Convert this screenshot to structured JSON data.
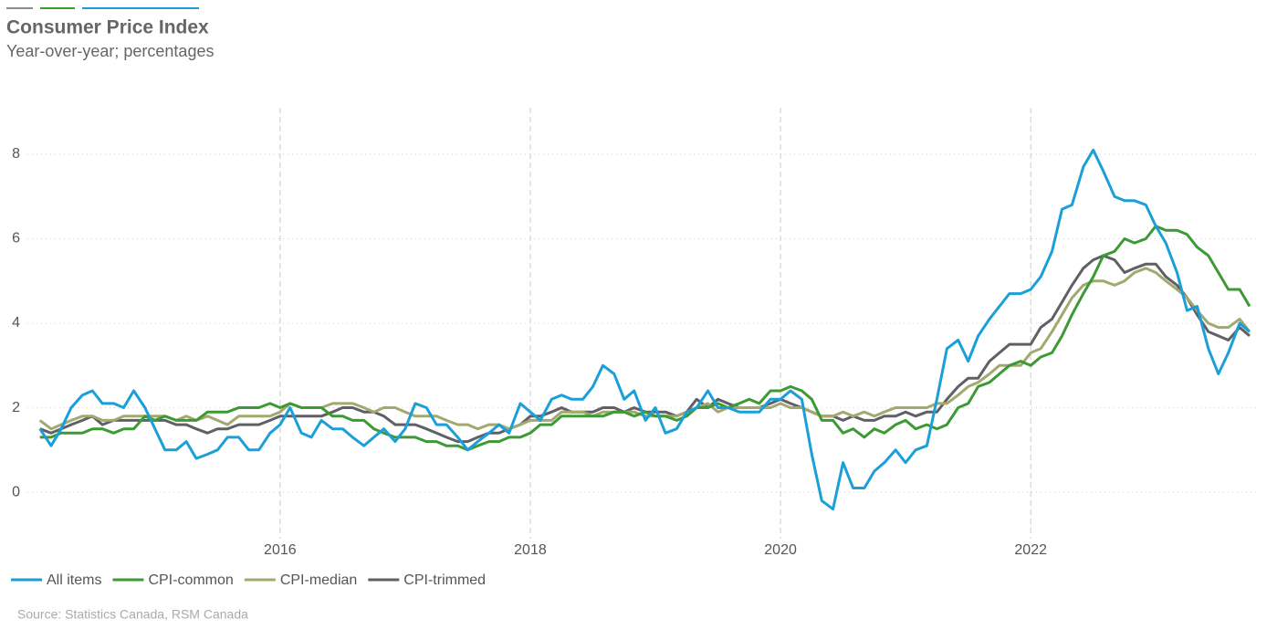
{
  "chart_data": {
    "type": "line",
    "title": "Consumer Price Index",
    "subtitle": "Year-over-year; percentages",
    "source": "Source: Statistics Canada, RSM Canada",
    "x": [
      2014.08,
      2014.17,
      2014.25,
      2014.33,
      2014.42,
      2014.5,
      2014.58,
      2014.67,
      2014.75,
      2014.83,
      2014.92,
      2015,
      2015.08,
      2015.17,
      2015.25,
      2015.33,
      2015.42,
      2015.5,
      2015.58,
      2015.67,
      2015.75,
      2015.83,
      2015.92,
      2016,
      2016.08,
      2016.17,
      2016.25,
      2016.33,
      2016.42,
      2016.5,
      2016.58,
      2016.67,
      2016.75,
      2016.83,
      2016.92,
      2017,
      2017.08,
      2017.17,
      2017.25,
      2017.33,
      2017.42,
      2017.5,
      2017.58,
      2017.67,
      2017.75,
      2017.83,
      2017.92,
      2018,
      2018.08,
      2018.17,
      2018.25,
      2018.33,
      2018.42,
      2018.5,
      2018.58,
      2018.67,
      2018.75,
      2018.83,
      2018.92,
      2019,
      2019.08,
      2019.17,
      2019.25,
      2019.33,
      2019.42,
      2019.5,
      2019.58,
      2019.67,
      2019.75,
      2019.83,
      2019.92,
      2020,
      2020.08,
      2020.17,
      2020.25,
      2020.33,
      2020.42,
      2020.5,
      2020.58,
      2020.67,
      2020.75,
      2020.83,
      2020.92,
      2021,
      2021.08,
      2021.17,
      2021.25,
      2021.33,
      2021.42,
      2021.5,
      2021.58,
      2021.67,
      2021.75,
      2021.83,
      2021.92,
      2022,
      2022.08,
      2022.17,
      2022.25,
      2022.33,
      2022.42,
      2022.5,
      2022.58,
      2022.67,
      2022.75,
      2022.83,
      2022.92,
      2023,
      2023.08,
      2023.17,
      2023.25,
      2023.33,
      2023.42,
      2023.5,
      2023.58,
      2023.67,
      2023.75
    ],
    "series": [
      {
        "name": "All items",
        "color": "#1a9fd9",
        "values": [
          1.5,
          1.1,
          1.5,
          2.0,
          2.3,
          2.4,
          2.1,
          2.1,
          2.0,
          2.4,
          2.0,
          1.5,
          1.0,
          1.0,
          1.2,
          0.8,
          0.9,
          1.0,
          1.3,
          1.3,
          1.0,
          1.0,
          1.4,
          1.6,
          2.0,
          1.4,
          1.3,
          1.7,
          1.5,
          1.5,
          1.3,
          1.1,
          1.3,
          1.5,
          1.2,
          1.5,
          2.1,
          2.0,
          1.6,
          1.6,
          1.3,
          1.0,
          1.2,
          1.4,
          1.6,
          1.4,
          2.1,
          1.9,
          1.7,
          2.2,
          2.3,
          2.2,
          2.2,
          2.5,
          3.0,
          2.8,
          2.2,
          2.4,
          1.7,
          2.0,
          1.4,
          1.5,
          1.9,
          2.0,
          2.4,
          2.0,
          2.0,
          1.9,
          1.9,
          1.9,
          2.2,
          2.2,
          2.4,
          2.2,
          0.9,
          -0.2,
          -0.4,
          0.7,
          0.1,
          0.1,
          0.5,
          0.7,
          1.0,
          0.7,
          1.0,
          1.1,
          2.2,
          3.4,
          3.6,
          3.1,
          3.7,
          4.1,
          4.4,
          4.7,
          4.7,
          4.8,
          5.1,
          5.7,
          6.7,
          6.8,
          7.7,
          8.1,
          7.6,
          7.0,
          6.9,
          6.9,
          6.8,
          6.3,
          5.9,
          5.2,
          4.3,
          4.4,
          3.4,
          2.8,
          3.3,
          4.0,
          3.8
        ]
      },
      {
        "name": "CPI-common",
        "color": "#3c9a34",
        "values": [
          1.3,
          1.3,
          1.4,
          1.4,
          1.4,
          1.5,
          1.5,
          1.4,
          1.5,
          1.5,
          1.8,
          1.7,
          1.8,
          1.7,
          1.7,
          1.7,
          1.9,
          1.9,
          1.9,
          2.0,
          2.0,
          2.0,
          2.1,
          2.0,
          2.1,
          2.0,
          2.0,
          2.0,
          1.8,
          1.8,
          1.7,
          1.7,
          1.5,
          1.4,
          1.3,
          1.3,
          1.3,
          1.2,
          1.2,
          1.1,
          1.1,
          1.0,
          1.1,
          1.2,
          1.2,
          1.3,
          1.3,
          1.4,
          1.6,
          1.6,
          1.8,
          1.8,
          1.8,
          1.8,
          1.8,
          1.9,
          1.9,
          1.8,
          1.9,
          1.8,
          1.8,
          1.7,
          1.8,
          2.0,
          2.0,
          2.1,
          2.0,
          2.1,
          2.2,
          2.1,
          2.4,
          2.4,
          2.5,
          2.4,
          2.2,
          1.7,
          1.7,
          1.4,
          1.5,
          1.3,
          1.5,
          1.4,
          1.6,
          1.7,
          1.5,
          1.6,
          1.5,
          1.6,
          2.0,
          2.1,
          2.5,
          2.6,
          2.8,
          3.0,
          3.1,
          3.0,
          3.2,
          3.3,
          3.7,
          4.2,
          4.7,
          5.1,
          5.6,
          5.7,
          6.0,
          5.9,
          6.0,
          6.3,
          6.2,
          6.2,
          6.1,
          5.8,
          5.6,
          5.2,
          4.8,
          4.8,
          4.4
        ]
      },
      {
        "name": "CPI-median",
        "color": "#a3a86e",
        "values": [
          1.7,
          1.5,
          1.6,
          1.7,
          1.8,
          1.8,
          1.7,
          1.7,
          1.8,
          1.8,
          1.8,
          1.8,
          1.8,
          1.7,
          1.8,
          1.7,
          1.8,
          1.7,
          1.6,
          1.8,
          1.8,
          1.8,
          1.8,
          1.9,
          2.1,
          2.0,
          2.0,
          2.0,
          2.1,
          2.1,
          2.1,
          2.0,
          1.9,
          2.0,
          2.0,
          1.9,
          1.8,
          1.8,
          1.8,
          1.7,
          1.6,
          1.6,
          1.5,
          1.6,
          1.6,
          1.5,
          1.6,
          1.7,
          1.7,
          1.7,
          1.9,
          1.9,
          1.9,
          1.8,
          1.9,
          1.9,
          1.9,
          1.9,
          1.8,
          1.8,
          1.8,
          1.8,
          1.9,
          2.0,
          2.1,
          1.9,
          2.0,
          2.0,
          2.0,
          2.0,
          2.0,
          2.1,
          2.0,
          2.0,
          1.9,
          1.8,
          1.8,
          1.9,
          1.8,
          1.9,
          1.8,
          1.9,
          2.0,
          2.0,
          2.0,
          2.0,
          2.1,
          2.1,
          2.3,
          2.5,
          2.6,
          2.8,
          3.0,
          3.0,
          3.0,
          3.3,
          3.4,
          3.8,
          4.2,
          4.6,
          4.9,
          5.0,
          5.0,
          4.9,
          5.0,
          5.2,
          5.3,
          5.2,
          5.0,
          4.8,
          4.6,
          4.3,
          4.0,
          3.9,
          3.9,
          4.1,
          3.8
        ]
      },
      {
        "name": "CPI-trimmed",
        "color": "#5f6066",
        "values": [
          1.5,
          1.4,
          1.5,
          1.6,
          1.7,
          1.8,
          1.6,
          1.7,
          1.7,
          1.7,
          1.7,
          1.7,
          1.7,
          1.6,
          1.6,
          1.5,
          1.4,
          1.5,
          1.5,
          1.6,
          1.6,
          1.6,
          1.7,
          1.8,
          1.8,
          1.8,
          1.8,
          1.8,
          1.9,
          2.0,
          2.0,
          1.9,
          1.9,
          1.8,
          1.6,
          1.6,
          1.6,
          1.5,
          1.4,
          1.3,
          1.2,
          1.2,
          1.3,
          1.4,
          1.4,
          1.5,
          1.6,
          1.8,
          1.8,
          1.9,
          2.0,
          1.9,
          1.9,
          1.9,
          2.0,
          2.0,
          1.9,
          2.0,
          1.9,
          1.9,
          1.9,
          1.8,
          1.9,
          2.2,
          2.0,
          2.2,
          2.1,
          2.0,
          2.0,
          2.0,
          2.1,
          2.2,
          2.1,
          2.0,
          1.9,
          1.8,
          1.8,
          1.7,
          1.8,
          1.7,
          1.7,
          1.8,
          1.8,
          1.9,
          1.8,
          1.9,
          1.9,
          2.2,
          2.5,
          2.7,
          2.7,
          3.1,
          3.3,
          3.5,
          3.5,
          3.5,
          3.9,
          4.1,
          4.5,
          4.9,
          5.3,
          5.5,
          5.6,
          5.5,
          5.2,
          5.3,
          5.4,
          5.4,
          5.1,
          4.9,
          4.6,
          4.2,
          3.8,
          3.7,
          3.6,
          3.9,
          3.7
        ]
      }
    ],
    "xlim": [
      2013.98,
      2023.83
    ],
    "xticks": [
      2016,
      2018,
      2020,
      2022
    ],
    "ylim": [
      -1.1,
      9.1
    ],
    "yticks": [
      0,
      2,
      4,
      6,
      8
    ],
    "grid": true,
    "legend": "bottom"
  }
}
